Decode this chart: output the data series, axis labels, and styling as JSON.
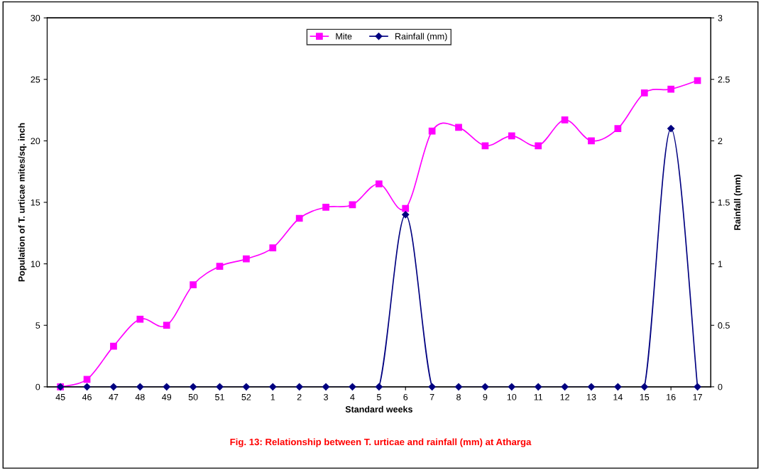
{
  "chart_data": {
    "type": "line",
    "categories": [
      "45",
      "46",
      "47",
      "48",
      "49",
      "50",
      "51",
      "52",
      "1",
      "2",
      "3",
      "4",
      "5",
      "6",
      "7",
      "8",
      "9",
      "10",
      "11",
      "12",
      "13",
      "14",
      "15",
      "16",
      "17"
    ],
    "series": [
      {
        "name": "Mite",
        "color": "#ff00ff",
        "marker": "square",
        "values": [
          0,
          0.6,
          3.3,
          5.5,
          5.0,
          8.3,
          9.8,
          10.4,
          11.3,
          13.7,
          14.6,
          14.8,
          16.5,
          14.5,
          20.8,
          21.1,
          19.6,
          20.4,
          19.6,
          21.7,
          20.0,
          21.0,
          23.9,
          24.2,
          24.9
        ]
      },
      {
        "name": "Rainfall (mm)",
        "color": "#000080",
        "marker": "diamond",
        "axis": "y2",
        "values": [
          0,
          0,
          0,
          0,
          0,
          0,
          0,
          0,
          0,
          0,
          0,
          0,
          0,
          1.4,
          0,
          0,
          0,
          0,
          0,
          0,
          0,
          0,
          0,
          2.1,
          0
        ]
      }
    ],
    "xlabel": "Standard weeks",
    "ylabel": "Population of T. urticae mites/sq. inch",
    "y2label": "Rainfall (mm)",
    "ylim": [
      0,
      30
    ],
    "yticks": [
      0,
      5,
      10,
      15,
      20,
      25,
      30
    ],
    "y2lim": [
      0,
      3
    ],
    "y2ticks": [
      0,
      0.5,
      1,
      1.5,
      2,
      2.5,
      3
    ],
    "legend": "top",
    "grid": false,
    "annotations": [
      "Fig. 13: Relationship between T. urticae and rainfall (mm) at Atharga"
    ]
  }
}
